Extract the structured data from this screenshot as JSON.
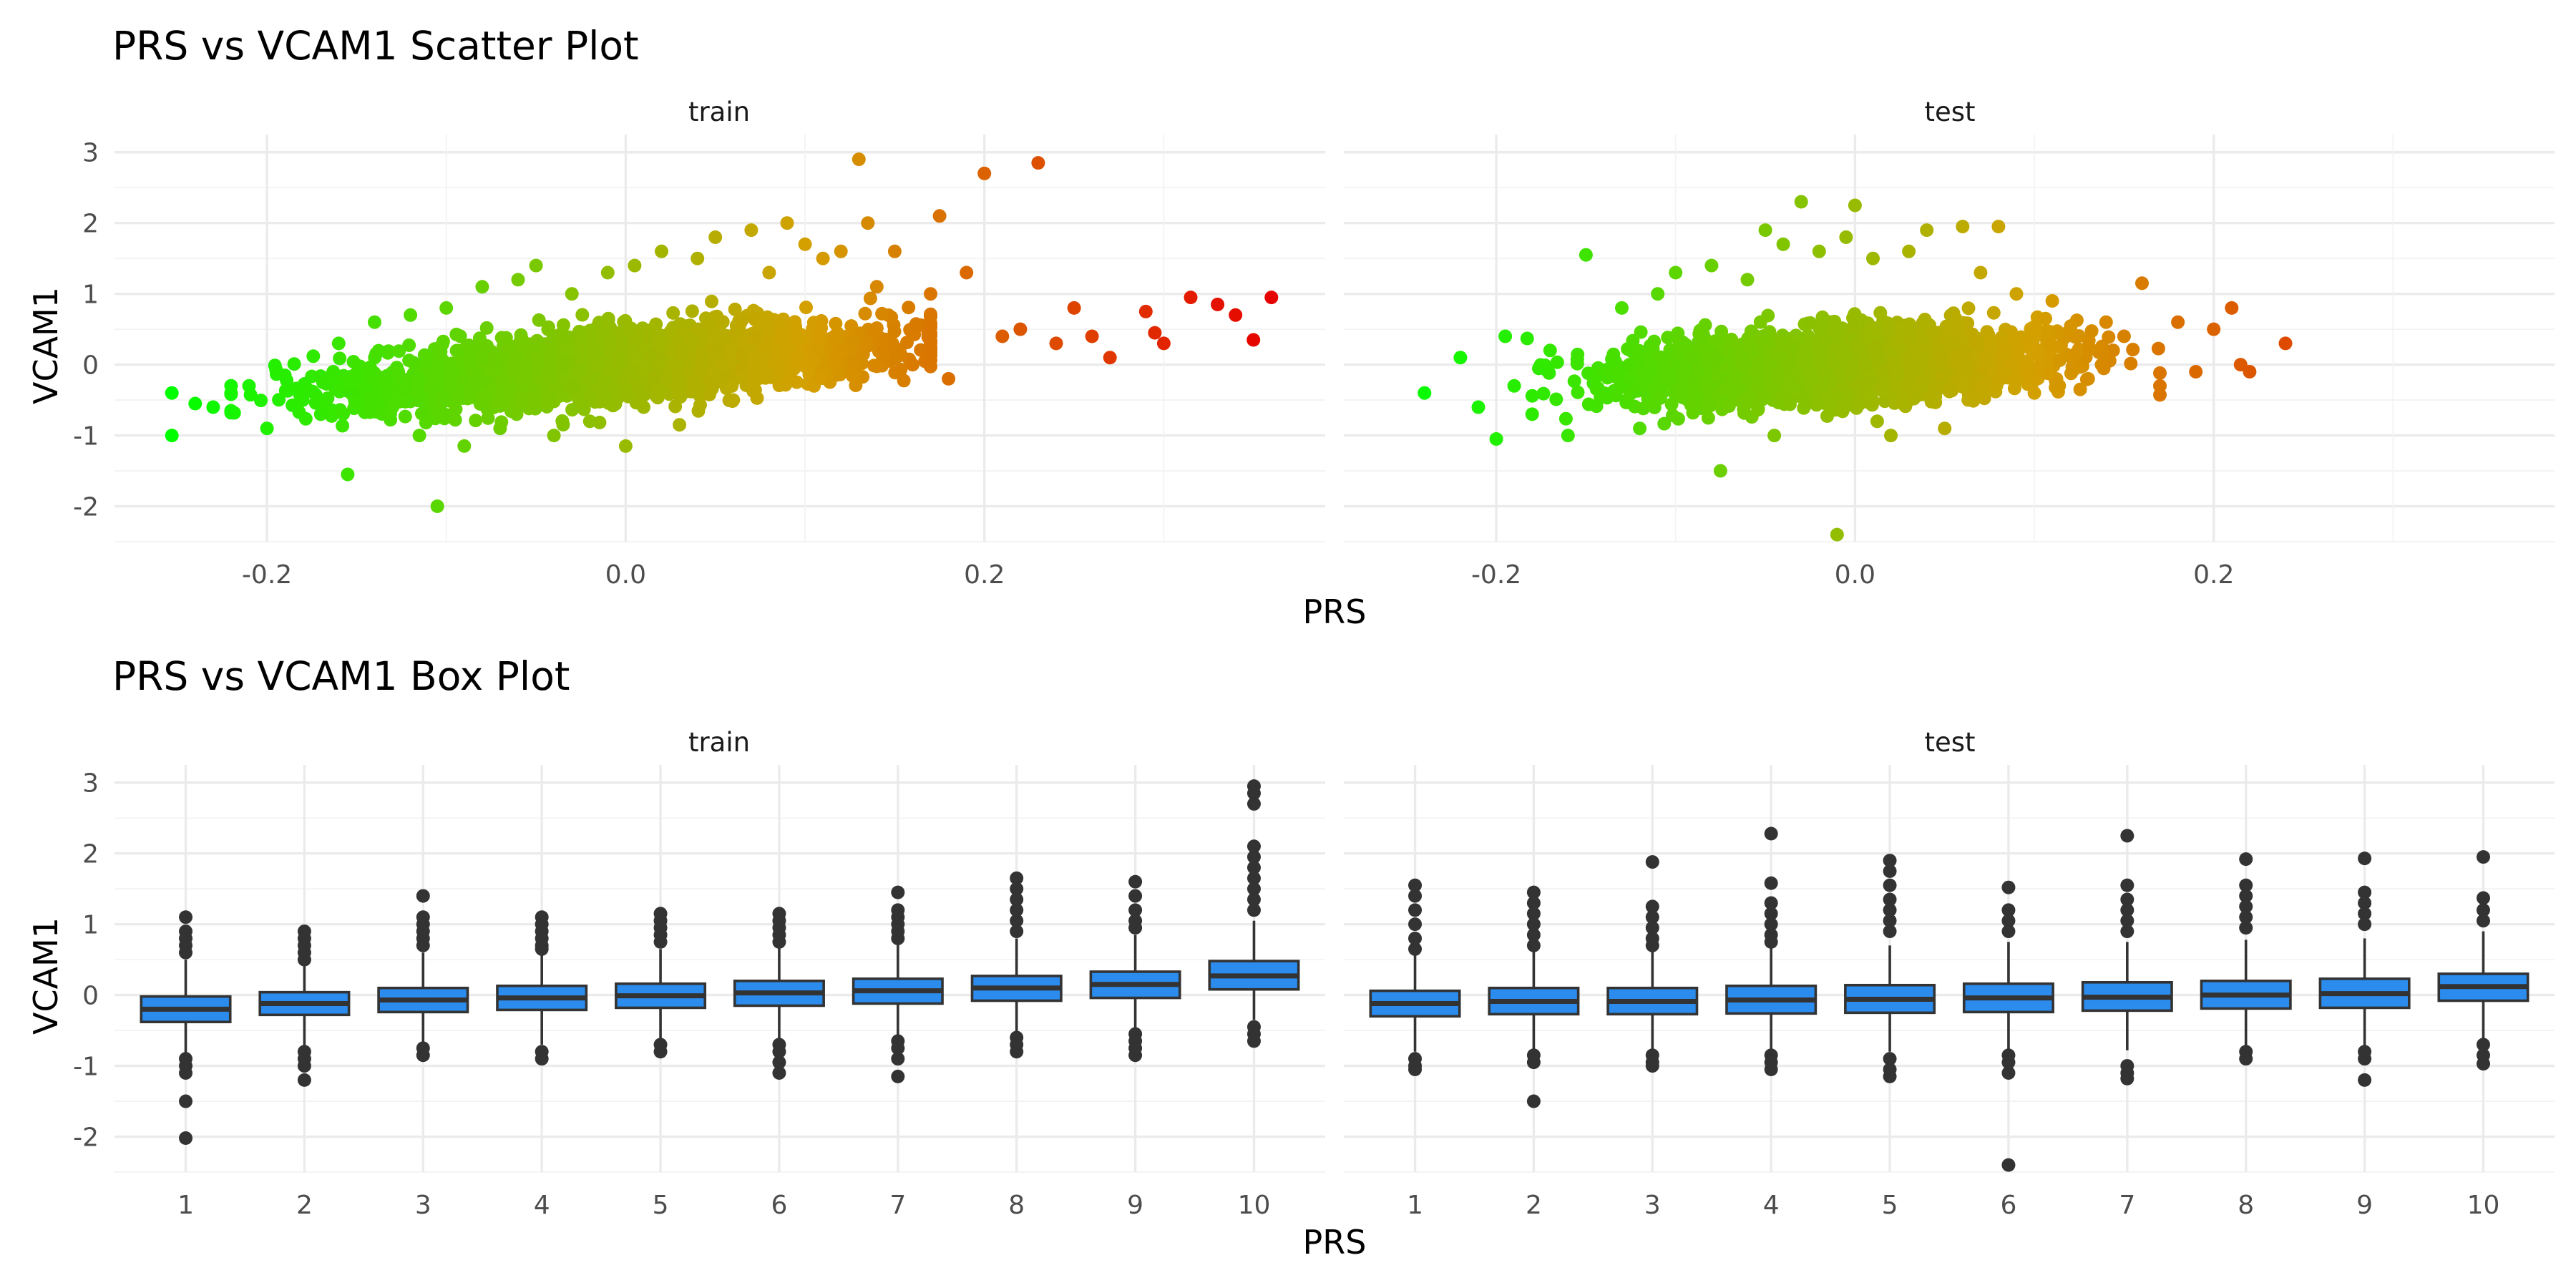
{
  "chart_data": [
    {
      "type": "scatter",
      "title": "PRS vs VCAM1 Scatter Plot",
      "xlabel": "PRS",
      "ylabel": "VCAM1",
      "facets": [
        "train",
        "test"
      ],
      "xlim": [
        -0.285,
        0.39
      ],
      "ylim": [
        -2.5,
        3.25
      ],
      "xticks": [
        -0.2,
        0.0,
        0.2
      ],
      "xtick_labels": [
        "-0.2",
        "0.0",
        "0.2"
      ],
      "yticks": [
        -2,
        -1,
        0,
        1,
        2,
        3
      ],
      "ytick_labels": [
        "-2",
        "-1",
        "0",
        "1",
        "2",
        "3"
      ],
      "color_scale": {
        "low": "#00ff00",
        "mid": "#d4a000",
        "high": "#e60000",
        "by": "PRS"
      },
      "grid": true,
      "legend": "none",
      "series": [
        {
          "facet": "train",
          "points": [
            [
              -0.253,
              -0.4
            ],
            [
              -0.253,
              -1.0
            ],
            [
              -0.24,
              -0.55
            ],
            [
              -0.23,
              -0.6
            ],
            [
              -0.22,
              -0.4
            ],
            [
              -0.21,
              -0.3
            ],
            [
              -0.2,
              -0.9
            ],
            [
              -0.19,
              -0.15
            ],
            [
              -0.18,
              -0.5
            ],
            [
              -0.17,
              -0.7
            ],
            [
              -0.16,
              0.3
            ],
            [
              -0.155,
              -1.55
            ],
            [
              -0.15,
              -0.2
            ],
            [
              -0.14,
              0.6
            ],
            [
              -0.13,
              -0.6
            ],
            [
              -0.12,
              0.7
            ],
            [
              -0.115,
              -1.0
            ],
            [
              -0.105,
              -2.0
            ],
            [
              -0.1,
              0.8
            ],
            [
              -0.09,
              -1.15
            ],
            [
              -0.08,
              1.1
            ],
            [
              -0.07,
              -0.9
            ],
            [
              -0.06,
              1.2
            ],
            [
              -0.05,
              1.4
            ],
            [
              -0.04,
              -1.0
            ],
            [
              -0.03,
              1.0
            ],
            [
              -0.02,
              -0.8
            ],
            [
              -0.01,
              1.3
            ],
            [
              0.0,
              -1.15
            ],
            [
              0.005,
              1.4
            ],
            [
              0.01,
              -0.6
            ],
            [
              0.02,
              1.6
            ],
            [
              0.03,
              -0.85
            ],
            [
              0.04,
              1.5
            ],
            [
              0.05,
              1.8
            ],
            [
              0.06,
              -0.5
            ],
            [
              0.07,
              1.9
            ],
            [
              0.08,
              1.3
            ],
            [
              0.09,
              2.0
            ],
            [
              0.1,
              1.7
            ],
            [
              0.105,
              -0.3
            ],
            [
              0.11,
              1.5
            ],
            [
              0.12,
              1.6
            ],
            [
              0.13,
              2.9
            ],
            [
              0.135,
              2.0
            ],
            [
              0.14,
              1.1
            ],
            [
              0.15,
              1.6
            ],
            [
              0.16,
              0.0
            ],
            [
              0.17,
              1.0
            ],
            [
              0.175,
              2.1
            ],
            [
              0.18,
              -0.2
            ],
            [
              0.19,
              1.3
            ],
            [
              0.2,
              2.7
            ],
            [
              0.21,
              0.4
            ],
            [
              0.22,
              0.5
            ],
            [
              0.23,
              2.85
            ],
            [
              0.24,
              0.3
            ],
            [
              0.25,
              0.8
            ],
            [
              0.26,
              0.4
            ],
            [
              0.27,
              0.1
            ],
            [
              0.29,
              0.75
            ],
            [
              0.295,
              0.45
            ],
            [
              0.3,
              0.3
            ],
            [
              0.315,
              0.95
            ],
            [
              0.33,
              0.85
            ],
            [
              0.34,
              0.7
            ],
            [
              0.35,
              0.35
            ],
            [
              0.36,
              0.95
            ]
          ]
        },
        {
          "facet": "test",
          "points": [
            [
              -0.24,
              -0.4
            ],
            [
              -0.22,
              0.1
            ],
            [
              -0.21,
              -0.6
            ],
            [
              -0.2,
              -1.05
            ],
            [
              -0.195,
              0.4
            ],
            [
              -0.19,
              -0.3
            ],
            [
              -0.18,
              -0.7
            ],
            [
              -0.17,
              0.2
            ],
            [
              -0.16,
              -1.0
            ],
            [
              -0.15,
              1.55
            ],
            [
              -0.14,
              -0.4
            ],
            [
              -0.13,
              0.8
            ],
            [
              -0.12,
              -0.9
            ],
            [
              -0.11,
              1.0
            ],
            [
              -0.1,
              1.3
            ],
            [
              -0.09,
              -0.6
            ],
            [
              -0.08,
              1.4
            ],
            [
              -0.075,
              -1.5
            ],
            [
              -0.06,
              1.2
            ],
            [
              -0.05,
              1.9
            ],
            [
              -0.045,
              -1.0
            ],
            [
              -0.04,
              1.7
            ],
            [
              -0.03,
              2.3
            ],
            [
              -0.02,
              1.6
            ],
            [
              -0.01,
              -2.4
            ],
            [
              -0.005,
              1.8
            ],
            [
              0.0,
              2.25
            ],
            [
              0.01,
              1.5
            ],
            [
              0.02,
              -1.0
            ],
            [
              0.03,
              1.6
            ],
            [
              0.04,
              1.9
            ],
            [
              0.05,
              -0.9
            ],
            [
              0.06,
              1.95
            ],
            [
              0.07,
              1.3
            ],
            [
              0.08,
              1.95
            ],
            [
              0.09,
              1.0
            ],
            [
              0.1,
              -0.4
            ],
            [
              0.11,
              0.9
            ],
            [
              0.12,
              0.5
            ],
            [
              0.13,
              -0.2
            ],
            [
              0.14,
              0.6
            ],
            [
              0.15,
              0.4
            ],
            [
              0.16,
              1.15
            ],
            [
              0.17,
              -0.3
            ],
            [
              0.18,
              0.6
            ],
            [
              0.19,
              -0.1
            ],
            [
              0.2,
              0.5
            ],
            [
              0.21,
              0.8
            ],
            [
              0.215,
              0.0
            ],
            [
              0.22,
              -0.1
            ],
            [
              0.24,
              0.3
            ]
          ]
        }
      ]
    },
    {
      "type": "box",
      "title": "PRS vs VCAM1 Box Plot",
      "xlabel": "PRS",
      "ylabel": "VCAM1",
      "facets": [
        "train",
        "test"
      ],
      "categories": [
        "1",
        "2",
        "3",
        "4",
        "5",
        "6",
        "7",
        "8",
        "9",
        "10"
      ],
      "ylim": [
        -2.5,
        3.25
      ],
      "yticks": [
        -2,
        -1,
        0,
        1,
        2,
        3
      ],
      "ytick_labels": [
        "-2",
        "-1",
        "0",
        "1",
        "2",
        "3"
      ],
      "box_fill": "#2b8cee",
      "box_stroke": "#333333",
      "grid": true,
      "series": [
        {
          "facet": "train",
          "boxes": [
            {
              "q1": -0.38,
              "median": -0.2,
              "q3": -0.02,
              "whisker_low": -0.85,
              "whisker_high": 0.5,
              "outliers": [
                1.1,
                0.9,
                0.8,
                0.7,
                0.6,
                -0.9,
                -1.0,
                -1.1,
                -1.5,
                -2.02
              ]
            },
            {
              "q1": -0.28,
              "median": -0.12,
              "q3": 0.04,
              "whisker_low": -0.75,
              "whisker_high": 0.5,
              "outliers": [
                0.9,
                0.8,
                0.7,
                0.6,
                0.5,
                -0.8,
                -0.9,
                -1.0,
                -1.2
              ]
            },
            {
              "q1": -0.24,
              "median": -0.07,
              "q3": 0.1,
              "whisker_low": -0.7,
              "whisker_high": 0.6,
              "outliers": [
                1.4,
                1.1,
                1.0,
                0.9,
                0.8,
                0.7,
                -0.75,
                -0.85
              ]
            },
            {
              "q1": -0.21,
              "median": -0.04,
              "q3": 0.13,
              "whisker_low": -0.7,
              "whisker_high": 0.6,
              "outliers": [
                1.1,
                1.0,
                0.9,
                0.8,
                0.7,
                0.65,
                -0.8,
                -0.9
              ]
            },
            {
              "q1": -0.18,
              "median": -0.01,
              "q3": 0.16,
              "whisker_low": -0.65,
              "whisker_high": 0.65,
              "outliers": [
                1.15,
                1.05,
                0.95,
                0.85,
                0.75,
                -0.7,
                -0.8
              ]
            },
            {
              "q1": -0.15,
              "median": 0.03,
              "q3": 0.2,
              "whisker_low": -0.65,
              "whisker_high": 0.7,
              "outliers": [
                1.15,
                1.05,
                0.95,
                0.85,
                0.75,
                -0.7,
                -0.8,
                -0.95,
                -1.1
              ]
            },
            {
              "q1": -0.12,
              "median": 0.06,
              "q3": 0.23,
              "whisker_low": -0.6,
              "whisker_high": 0.75,
              "outliers": [
                1.45,
                1.2,
                1.1,
                1.0,
                0.9,
                0.8,
                -0.65,
                -0.75,
                -0.9,
                -1.15
              ]
            },
            {
              "q1": -0.08,
              "median": 0.1,
              "q3": 0.27,
              "whisker_low": -0.55,
              "whisker_high": 0.8,
              "outliers": [
                1.65,
                1.5,
                1.35,
                1.2,
                1.05,
                0.9,
                -0.6,
                -0.7,
                -0.8
              ]
            },
            {
              "q1": -0.04,
              "median": 0.15,
              "q3": 0.33,
              "whisker_low": -0.5,
              "whisker_high": 0.85,
              "outliers": [
                1.6,
                1.4,
                1.2,
                1.05,
                0.95,
                -0.55,
                -0.65,
                -0.75,
                -0.85
              ]
            },
            {
              "q1": 0.08,
              "median": 0.27,
              "q3": 0.48,
              "whisker_low": -0.35,
              "whisker_high": 1.05,
              "outliers": [
                2.95,
                2.85,
                2.7,
                2.1,
                1.95,
                1.8,
                1.65,
                1.5,
                1.35,
                1.2,
                -0.45,
                -0.55,
                -0.65
              ]
            }
          ]
        },
        {
          "facet": "test",
          "boxes": [
            {
              "q1": -0.3,
              "median": -0.12,
              "q3": 0.06,
              "whisker_low": -0.8,
              "whisker_high": 0.6,
              "outliers": [
                1.55,
                1.4,
                1.2,
                1.0,
                0.8,
                0.65,
                -0.9,
                -1.0,
                -1.05
              ]
            },
            {
              "q1": -0.27,
              "median": -0.09,
              "q3": 0.1,
              "whisker_low": -0.8,
              "whisker_high": 0.65,
              "outliers": [
                1.45,
                1.3,
                1.15,
                1.0,
                0.85,
                0.7,
                -0.85,
                -0.95,
                -1.5
              ]
            },
            {
              "q1": -0.27,
              "median": -0.09,
              "q3": 0.1,
              "whisker_low": -0.8,
              "whisker_high": 0.65,
              "outliers": [
                1.88,
                1.25,
                1.1,
                0.95,
                0.8,
                0.7,
                -0.85,
                -0.95,
                -1.0
              ]
            },
            {
              "q1": -0.26,
              "median": -0.07,
              "q3": 0.13,
              "whisker_low": -0.8,
              "whisker_high": 0.7,
              "outliers": [
                2.28,
                1.58,
                1.3,
                1.15,
                1.0,
                0.85,
                0.75,
                -0.85,
                -0.95,
                -1.05
              ]
            },
            {
              "q1": -0.25,
              "median": -0.06,
              "q3": 0.14,
              "whisker_low": -0.8,
              "whisker_high": 0.7,
              "outliers": [
                1.9,
                1.75,
                1.55,
                1.35,
                1.2,
                1.05,
                0.9,
                -0.9,
                -1.05,
                -1.15
              ]
            },
            {
              "q1": -0.24,
              "median": -0.04,
              "q3": 0.16,
              "whisker_low": -0.8,
              "whisker_high": 0.75,
              "outliers": [
                1.52,
                1.2,
                1.05,
                0.9,
                -0.85,
                -0.95,
                -1.1,
                -2.4
              ]
            },
            {
              "q1": -0.22,
              "median": -0.03,
              "q3": 0.18,
              "whisker_low": -0.78,
              "whisker_high": 0.75,
              "outliers": [
                2.25,
                1.55,
                1.35,
                1.2,
                1.05,
                0.9,
                -1.0,
                -1.1,
                -1.18
              ]
            },
            {
              "q1": -0.19,
              "median": 0.0,
              "q3": 0.2,
              "whisker_low": -0.75,
              "whisker_high": 0.78,
              "outliers": [
                1.92,
                1.55,
                1.4,
                1.25,
                1.1,
                0.95,
                -0.8,
                -0.9
              ]
            },
            {
              "q1": -0.18,
              "median": 0.02,
              "q3": 0.23,
              "whisker_low": -0.72,
              "whisker_high": 0.8,
              "outliers": [
                1.93,
                1.45,
                1.3,
                1.15,
                1.0,
                -0.8,
                -0.9,
                -1.2
              ]
            },
            {
              "q1": -0.08,
              "median": 0.12,
              "q3": 0.3,
              "whisker_low": -0.65,
              "whisker_high": 0.9,
              "outliers": [
                1.95,
                1.37,
                1.2,
                1.05,
                -0.7,
                -0.85,
                -0.97
              ]
            }
          ]
        }
      ]
    }
  ]
}
